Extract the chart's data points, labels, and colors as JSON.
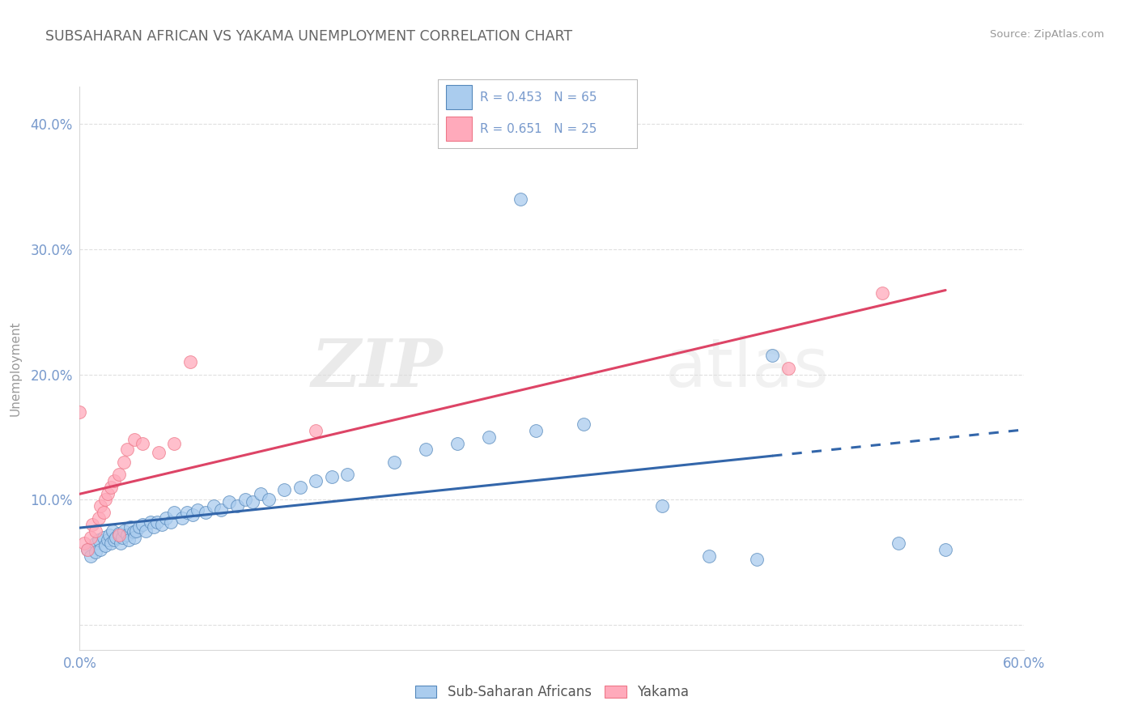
{
  "title": "SUBSAHARAN AFRICAN VS YAKAMA UNEMPLOYMENT CORRELATION CHART",
  "source_text": "Source: ZipAtlas.com",
  "ylabel": "Unemployment",
  "xlim": [
    0.0,
    0.6
  ],
  "ylim": [
    -0.02,
    0.43
  ],
  "yticks": [
    0.0,
    0.1,
    0.2,
    0.3,
    0.4
  ],
  "xticks": [
    0.0,
    0.1,
    0.2,
    0.3,
    0.4,
    0.5,
    0.6
  ],
  "xtick_labels": [
    "0.0%",
    "",
    "",
    "",
    "",
    "",
    "60.0%"
  ],
  "ytick_labels": [
    "",
    "10.0%",
    "20.0%",
    "30.0%",
    "40.0%"
  ],
  "background_color": "#ffffff",
  "grid_color": "#d8d8d8",
  "title_color": "#666666",
  "axis_color": "#7799cc",
  "legend_r1": "R = 0.453",
  "legend_n1": "N = 65",
  "legend_r2": "R = 0.651",
  "legend_n2": "N = 25",
  "blue_color": "#5588bb",
  "pink_color": "#ee7788",
  "blue_fill": "#aaccee",
  "pink_fill": "#ffaabb",
  "line_blue": "#3366aa",
  "line_pink": "#dd4466",
  "scatter_blue": [
    [
      0.005,
      0.06
    ],
    [
      0.007,
      0.055
    ],
    [
      0.01,
      0.065
    ],
    [
      0.01,
      0.058
    ],
    [
      0.012,
      0.068
    ],
    [
      0.013,
      0.06
    ],
    [
      0.015,
      0.07
    ],
    [
      0.016,
      0.063
    ],
    [
      0.018,
      0.068
    ],
    [
      0.019,
      0.072
    ],
    [
      0.02,
      0.065
    ],
    [
      0.021,
      0.075
    ],
    [
      0.022,
      0.068
    ],
    [
      0.023,
      0.07
    ],
    [
      0.025,
      0.073
    ],
    [
      0.026,
      0.065
    ],
    [
      0.027,
      0.07
    ],
    [
      0.028,
      0.075
    ],
    [
      0.03,
      0.072
    ],
    [
      0.031,
      0.068
    ],
    [
      0.032,
      0.078
    ],
    [
      0.034,
      0.074
    ],
    [
      0.035,
      0.07
    ],
    [
      0.036,
      0.075
    ],
    [
      0.038,
      0.078
    ],
    [
      0.04,
      0.08
    ],
    [
      0.042,
      0.075
    ],
    [
      0.045,
      0.082
    ],
    [
      0.047,
      0.078
    ],
    [
      0.049,
      0.082
    ],
    [
      0.052,
      0.08
    ],
    [
      0.055,
      0.085
    ],
    [
      0.058,
      0.082
    ],
    [
      0.06,
      0.09
    ],
    [
      0.065,
      0.085
    ],
    [
      0.068,
      0.09
    ],
    [
      0.072,
      0.088
    ],
    [
      0.075,
      0.092
    ],
    [
      0.08,
      0.09
    ],
    [
      0.085,
      0.095
    ],
    [
      0.09,
      0.092
    ],
    [
      0.095,
      0.098
    ],
    [
      0.1,
      0.095
    ],
    [
      0.105,
      0.1
    ],
    [
      0.11,
      0.098
    ],
    [
      0.115,
      0.105
    ],
    [
      0.12,
      0.1
    ],
    [
      0.13,
      0.108
    ],
    [
      0.14,
      0.11
    ],
    [
      0.15,
      0.115
    ],
    [
      0.16,
      0.118
    ],
    [
      0.17,
      0.12
    ],
    [
      0.2,
      0.13
    ],
    [
      0.22,
      0.14
    ],
    [
      0.24,
      0.145
    ],
    [
      0.26,
      0.15
    ],
    [
      0.29,
      0.155
    ],
    [
      0.32,
      0.16
    ],
    [
      0.37,
      0.095
    ],
    [
      0.4,
      0.055
    ],
    [
      0.43,
      0.052
    ],
    [
      0.44,
      0.215
    ],
    [
      0.28,
      0.34
    ],
    [
      0.52,
      0.065
    ],
    [
      0.55,
      0.06
    ]
  ],
  "scatter_pink": [
    [
      0.003,
      0.065
    ],
    [
      0.005,
      0.06
    ],
    [
      0.007,
      0.07
    ],
    [
      0.008,
      0.08
    ],
    [
      0.01,
      0.075
    ],
    [
      0.012,
      0.085
    ],
    [
      0.013,
      0.095
    ],
    [
      0.015,
      0.09
    ],
    [
      0.016,
      0.1
    ],
    [
      0.018,
      0.105
    ],
    [
      0.02,
      0.11
    ],
    [
      0.022,
      0.115
    ],
    [
      0.025,
      0.12
    ],
    [
      0.028,
      0.13
    ],
    [
      0.03,
      0.14
    ],
    [
      0.035,
      0.148
    ],
    [
      0.04,
      0.145
    ],
    [
      0.05,
      0.138
    ],
    [
      0.06,
      0.145
    ],
    [
      0.07,
      0.21
    ],
    [
      0.0,
      0.17
    ],
    [
      0.025,
      0.072
    ],
    [
      0.15,
      0.155
    ],
    [
      0.45,
      0.205
    ],
    [
      0.51,
      0.265
    ]
  ],
  "watermark_zip": "ZIP",
  "watermark_atlas": "atlas",
  "figsize": [
    14.06,
    8.92
  ],
  "dpi": 100
}
